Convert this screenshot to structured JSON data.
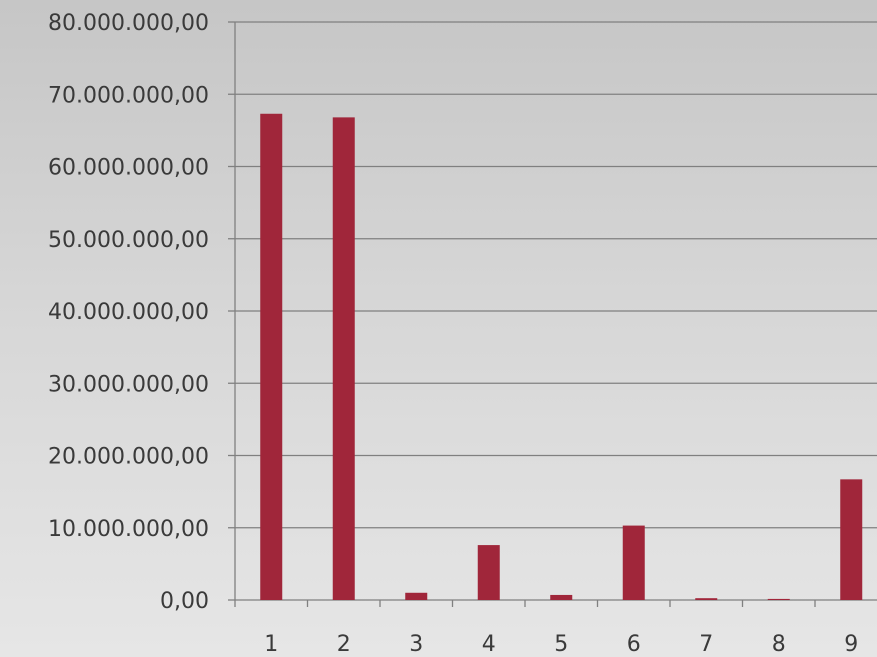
{
  "chart_data": {
    "type": "bar",
    "title": "",
    "xlabel": "",
    "ylabel": "",
    "categories": [
      "1",
      "2",
      "3",
      "4",
      "5",
      "6",
      "7",
      "8",
      "9"
    ],
    "series": [
      {
        "values": [
          67300000,
          66800000,
          1000000,
          7600000,
          700000,
          10300000,
          250000,
          150000,
          16700000
        ]
      }
    ],
    "ylim": [
      0,
      80000000
    ],
    "y_ticks": [
      "0,00",
      "10.000.000,00",
      "20.000.000,00",
      "30.000.000,00",
      "40.000.000,00",
      "50.000.000,00",
      "60.000.000,00",
      "70.000.000,00",
      "80.000.000,00"
    ],
    "grid": true,
    "legend": "none",
    "colors": {
      "bar": "#a0263a",
      "gridline": "#808080",
      "axis": "#808080",
      "text": "#3a3a3a"
    }
  }
}
